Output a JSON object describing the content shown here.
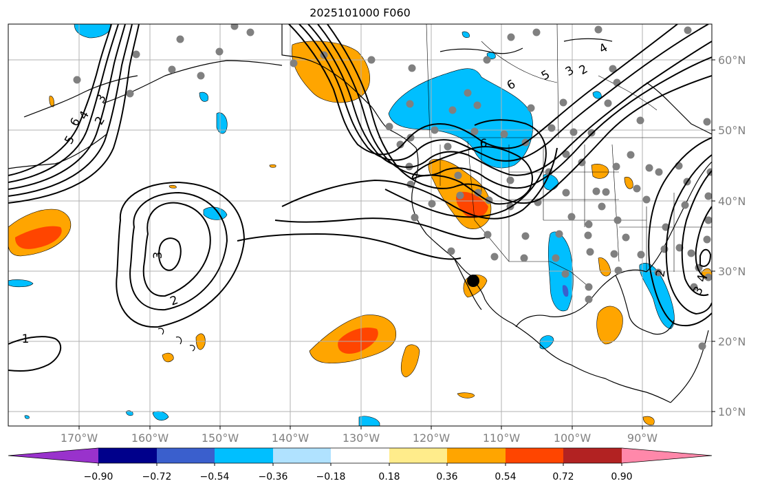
{
  "title": "2025101000 F060",
  "lon_labels": [
    "170°W",
    "160°W",
    "150°W",
    "140°W",
    "130°W",
    "120°W",
    "110°W",
    "100°W",
    "90°W"
  ],
  "lat_labels": [
    "60°N",
    "50°N",
    "40°N",
    "30°N",
    "20°N",
    "10°N"
  ],
  "contour_labels": [
    "6",
    "5",
    "4",
    "3",
    "2",
    "6",
    "5",
    "4",
    "3",
    "2",
    "6",
    "3",
    "2",
    "1",
    "2",
    "3",
    "4"
  ],
  "colorbar": {
    "tick_labels": [
      "−0.90",
      "−0.72",
      "−0.54",
      "−0.36",
      "−0.18",
      "0.18",
      "0.36",
      "0.54",
      "0.72",
      "0.90"
    ],
    "colors": [
      "#9932cc",
      "#00008b",
      "#3a5fcd",
      "#00bfff",
      "#b0e2ff",
      "#ffffff",
      "#ffec8b",
      "#ffa500",
      "#ff4500",
      "#b22222",
      "#ff88aa"
    ]
  },
  "colors": {
    "land_line": "#000000",
    "grid": "#aaaaaa",
    "station": "#808080",
    "pos_mid": "#ffa500",
    "pos_high": "#ff4500",
    "neg_mid": "#00bfff",
    "neg_high": "#3a5fcd"
  }
}
